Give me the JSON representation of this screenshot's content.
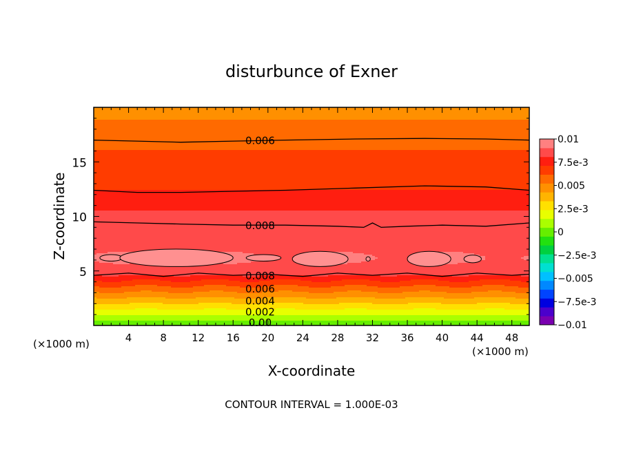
{
  "chart_data": {
    "type": "heatmap",
    "title": "disturbunce of Exner",
    "xlabel": "X-coordinate",
    "ylabel": "Z-coordinate",
    "x_unit": "(×1000 m)",
    "footer": "CONTOUR INTERVAL = 1.000E-03",
    "xlim": [
      0,
      50
    ],
    "ylim": [
      0,
      20
    ],
    "x_ticks": [
      4,
      8,
      12,
      16,
      20,
      24,
      28,
      32,
      36,
      40,
      44,
      48
    ],
    "y_ticks": [
      5,
      10,
      15
    ],
    "colorbar": {
      "min": -0.01,
      "max": 0.01,
      "tick_values": [
        0.01,
        0.0075,
        0.005,
        0.0025,
        0,
        -0.0025,
        -0.005,
        -0.0075,
        -0.01
      ],
      "tick_labels": [
        "0.01",
        "7.5e-3",
        "0.005",
        "2.5e-3",
        "0",
        "−2.5e-3",
        "−0.005",
        "−7.5e-3",
        "−0.01"
      ],
      "colors": [
        "#7a00b0",
        "#4b00cc",
        "#0000e0",
        "#0044ff",
        "#0088ff",
        "#00c0ff",
        "#00e0d0",
        "#00e090",
        "#00d040",
        "#22e010",
        "#66ee00",
        "#aaff00",
        "#e8ff00",
        "#ffe000",
        "#ffb400",
        "#ff9000",
        "#ff6a00",
        "#ff3c00",
        "#ff1e10",
        "#ff4a4a",
        "#ff8080"
      ]
    },
    "contour_labels": [
      {
        "text": "0.006",
        "x": 19.1,
        "y": 17
      },
      {
        "text": "0.008",
        "x": 19.1,
        "y": 9.2
      },
      {
        "text": "0.008",
        "x": 19.1,
        "y": 4.6
      },
      {
        "text": "0.006",
        "x": 19.1,
        "y": 3.4
      },
      {
        "text": "0.004",
        "x": 19.1,
        "y": 2.3
      },
      {
        "text": "0.002",
        "x": 19.1,
        "y": 1.3
      },
      {
        "text": "0.00",
        "x": 19.1,
        "y": 0.3
      }
    ],
    "contours": [
      {
        "value": 0.006,
        "points": [
          [
            0,
            17.0
          ],
          [
            5,
            16.9
          ],
          [
            10,
            16.8
          ],
          [
            16,
            16.9
          ],
          [
            22,
            17.0
          ],
          [
            30,
            17.1
          ],
          [
            38,
            17.15
          ],
          [
            45,
            17.1
          ],
          [
            50,
            17.0
          ]
        ]
      },
      {
        "value": 0.007,
        "points": [
          [
            0,
            12.4
          ],
          [
            5,
            12.2
          ],
          [
            10,
            12.2
          ],
          [
            16,
            12.3
          ],
          [
            22,
            12.4
          ],
          [
            30,
            12.6
          ],
          [
            38,
            12.8
          ],
          [
            45,
            12.7
          ],
          [
            50,
            12.4
          ]
        ]
      },
      {
        "value": 0.008,
        "points": [
          [
            0,
            9.5
          ],
          [
            5,
            9.4
          ],
          [
            10,
            9.3
          ],
          [
            16,
            9.2
          ],
          [
            22,
            9.2
          ],
          [
            28,
            9.1
          ],
          [
            31,
            9.0
          ],
          [
            32,
            9.4
          ],
          [
            33,
            9.0
          ],
          [
            36,
            9.1
          ],
          [
            40,
            9.2
          ],
          [
            45,
            9.1
          ],
          [
            50,
            9.4
          ]
        ]
      },
      {
        "value": 0.008,
        "points": [
          [
            0,
            4.6
          ],
          [
            4,
            4.8
          ],
          [
            8,
            4.5
          ],
          [
            12,
            4.8
          ],
          [
            16,
            4.6
          ],
          [
            20,
            4.7
          ],
          [
            24,
            4.5
          ],
          [
            28,
            4.8
          ],
          [
            32,
            4.6
          ],
          [
            36,
            4.8
          ],
          [
            40,
            4.5
          ],
          [
            44,
            4.8
          ],
          [
            48,
            4.6
          ],
          [
            50,
            4.7
          ]
        ]
      }
    ],
    "closed_contours": [
      {
        "value": 0.009,
        "cx": 2.0,
        "cy": 6.2,
        "rx": 1.3,
        "ry": 0.3
      },
      {
        "value": 0.009,
        "cx": 9.5,
        "cy": 6.2,
        "rx": 6.5,
        "ry": 0.8
      },
      {
        "value": 0.009,
        "cx": 19.5,
        "cy": 6.2,
        "rx": 2.0,
        "ry": 0.3
      },
      {
        "value": 0.009,
        "cx": 26.0,
        "cy": 6.1,
        "rx": 3.2,
        "ry": 0.7
      },
      {
        "value": 0.009,
        "cx": 31.5,
        "cy": 6.1,
        "rx": 0.25,
        "ry": 0.2
      },
      {
        "value": 0.009,
        "cx": 38.5,
        "cy": 6.1,
        "rx": 2.5,
        "ry": 0.7
      },
      {
        "value": 0.009,
        "cx": 43.5,
        "cy": 6.1,
        "rx": 1.0,
        "ry": 0.35
      }
    ]
  }
}
